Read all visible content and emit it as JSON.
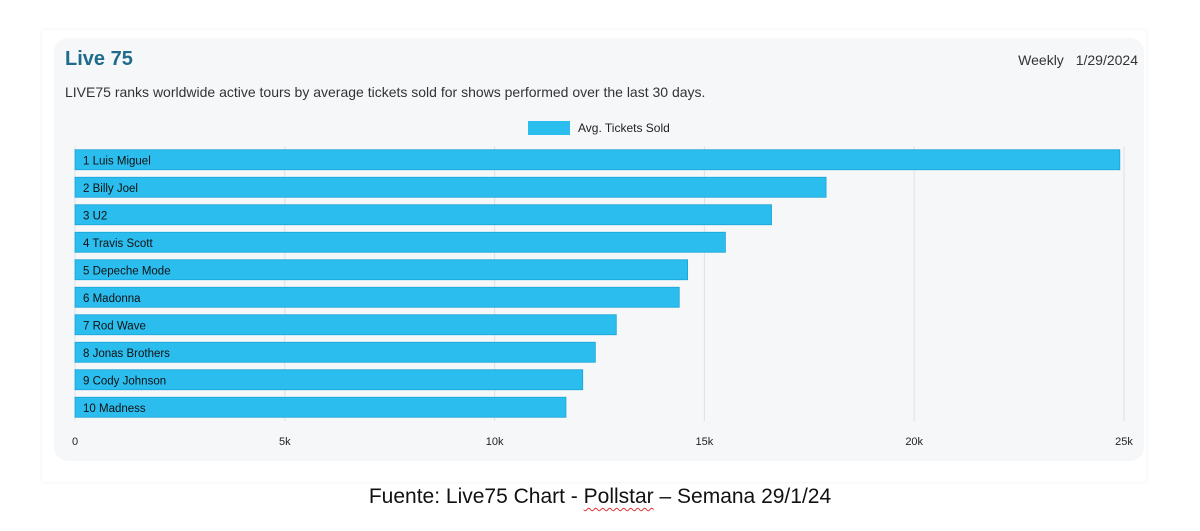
{
  "header": {
    "title": "Live 75",
    "period_label": "Weekly",
    "date": "1/29/2024",
    "description": "LIVE75 ranks worldwide active tours by average tickets sold for shows performed over the last 30 days."
  },
  "footer": {
    "prefix": "Fuente: Live75 Chart - ",
    "source": "Pollstar",
    "suffix": " – Semana 29/1/24"
  },
  "colors": {
    "bar": "#2bbdee",
    "bar_stroke": "#1aa3d6",
    "grid": "#dde1e6",
    "title": "#1e6b8c"
  },
  "chart_data": {
    "type": "bar",
    "orientation": "horizontal",
    "categories": [
      "1 Luis Miguel",
      "2 Billy Joel",
      "3 U2",
      "4 Travis Scott",
      "5 Depeche Mode",
      "6 Madonna",
      "7 Rod Wave",
      "8 Jonas Brothers",
      "9 Cody Johnson",
      "10 Madness"
    ],
    "series": [
      {
        "name": "Avg. Tickets Sold",
        "values": [
          24900,
          17900,
          16600,
          15500,
          14600,
          14400,
          12900,
          12400,
          12100,
          11700
        ]
      }
    ],
    "xlim": [
      0,
      25000
    ],
    "xticks": [
      0,
      5000,
      10000,
      15000,
      20000,
      25000
    ],
    "xtick_labels": [
      "0",
      "5k",
      "10k",
      "15k",
      "20k",
      "25k"
    ],
    "legend": "top-center",
    "grid": true
  }
}
